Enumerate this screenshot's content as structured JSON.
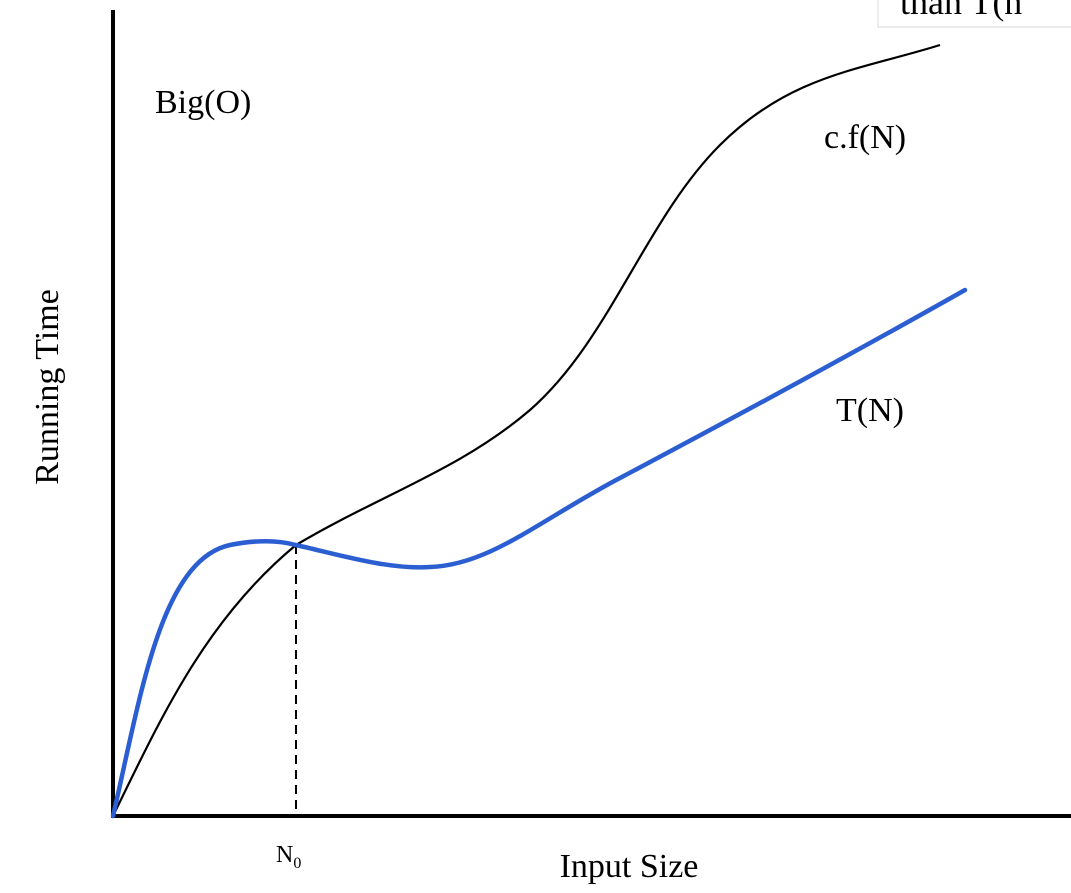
{
  "diagram": {
    "title": "Big(O)",
    "y_axis_label": "Running Time",
    "x_axis_label": "Input Size",
    "threshold_label": {
      "base": "N",
      "subscript": "0"
    },
    "curve_upper_label": "c.f(N)",
    "curve_lower_label": "T(N)",
    "cropped_corner_text": "than T(n",
    "colors": {
      "axes": "#000000",
      "upper_curve": "#000000",
      "lower_curve": "#2b5fd1",
      "threshold_line": "#000000"
    },
    "threshold_line_style": "dashed"
  }
}
